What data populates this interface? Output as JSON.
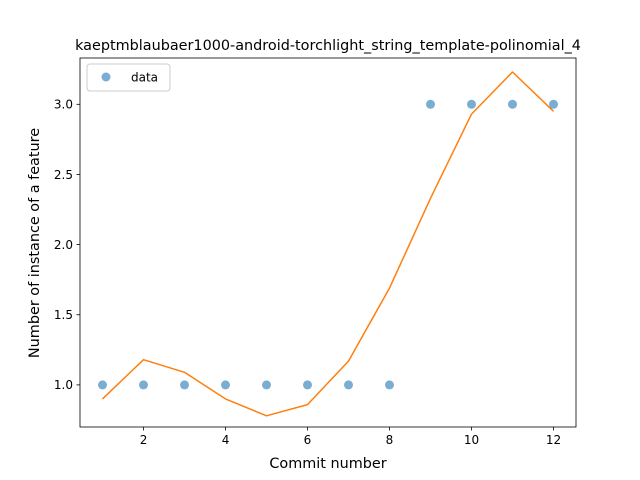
{
  "chart_data": {
    "type": "scatter",
    "title": "kaeptmblaubaer1000-android-torchlight_string_template-polinomial_4",
    "xlabel": "Commit number",
    "ylabel": "Number of instance of a feature",
    "xlim": [
      0.45,
      12.55
    ],
    "ylim": [
      0.7,
      3.33
    ],
    "xticks": [
      2,
      4,
      6,
      8,
      10,
      12
    ],
    "yticks": [
      1.0,
      1.5,
      2.0,
      2.5,
      3.0
    ],
    "xtick_labels": [
      "2",
      "4",
      "6",
      "8",
      "10",
      "12"
    ],
    "ytick_labels": [
      "1.0",
      "1.5",
      "2.0",
      "2.5",
      "3.0"
    ],
    "legend_position": "top-left",
    "grid": false,
    "series": [
      {
        "name": "data",
        "kind": "markers",
        "color": "#1f77b4",
        "x": [
          1,
          2,
          3,
          4,
          5,
          6,
          7,
          8,
          9,
          10,
          11,
          12
        ],
        "y": [
          1,
          1,
          1,
          1,
          1,
          1,
          1,
          1,
          3,
          3,
          3,
          3
        ]
      },
      {
        "kind": "line",
        "color": "#ff7f0e",
        "x": [
          1,
          2,
          3,
          4,
          5,
          6,
          7,
          8,
          9,
          10,
          11,
          12
        ],
        "y": [
          0.9,
          1.18,
          1.09,
          0.9,
          0.78,
          0.86,
          1.17,
          1.69,
          2.33,
          2.93,
          3.23,
          2.95
        ]
      }
    ]
  }
}
